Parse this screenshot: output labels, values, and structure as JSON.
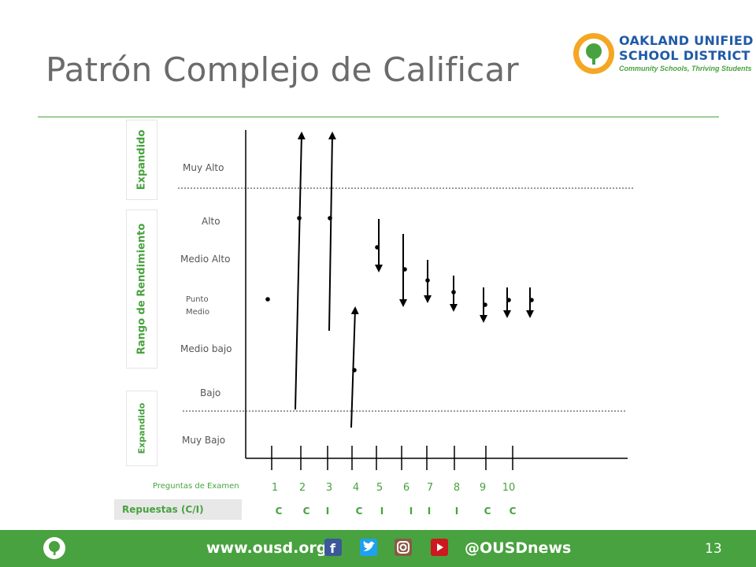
{
  "title": "Patrón Complejo de Calificar",
  "logo": {
    "line1": "OAKLAND UNIFIED",
    "line2": "SCHOOL DISTRICT",
    "tagline": "Community Schools, Thriving Students"
  },
  "side_labels": {
    "top": "Expandido",
    "middle": "Rango de Rendimiento",
    "bottom": "Expandido"
  },
  "levels": {
    "muy_alto": "Muy Alto",
    "alto": "Alto",
    "medio_alto": "Medio Alto",
    "punto_medio_1": "Punto",
    "punto_medio_2": "Medio",
    "medio_bajo": "Medio bajo",
    "bajo": "Bajo",
    "muy_bajo": "Muy Bajo"
  },
  "questions_label": "Preguntas de Examen",
  "answers_label": "Repuestas (C/I)",
  "questions": [
    "1",
    "2",
    "3",
    "4",
    "5",
    "6",
    "7",
    "8",
    "9",
    "10"
  ],
  "answers": [
    "C",
    "C",
    "I",
    "C",
    "I",
    "I",
    "I",
    "I",
    "C",
    "C"
  ],
  "footer": {
    "url": "www.ousd.org",
    "handle": "@OUSDnews",
    "page": "13"
  }
}
